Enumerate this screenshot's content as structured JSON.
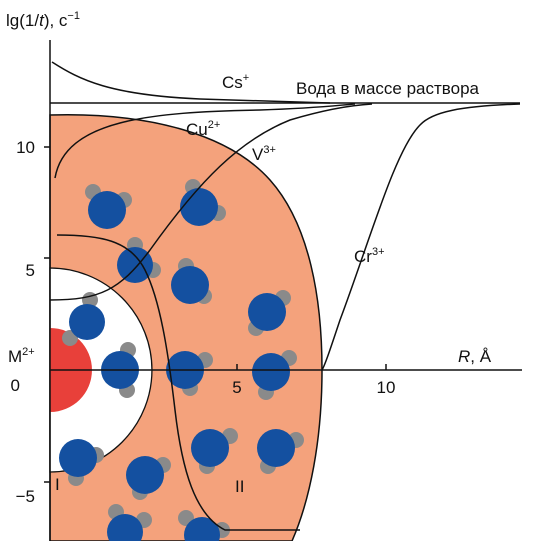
{
  "y_axis": {
    "prefix": "lg(1/",
    "var": "t",
    "suffix": "), c",
    "sup": "−1"
  },
  "x_axis": {
    "var": "R",
    "suffix": ", Å"
  },
  "y_ticks": [
    "10",
    "5",
    "0",
    "−5"
  ],
  "x_ticks": [
    "5",
    "10"
  ],
  "ion": {
    "base": "M",
    "sup": "2+"
  },
  "water_label": "Вода в массе раствора",
  "curves": [
    {
      "base": "Cs",
      "sup": "+"
    },
    {
      "base": "Cu",
      "sup": "2+"
    },
    {
      "base": "V",
      "sup": "3+"
    },
    {
      "base": "Cr",
      "sup": "3+"
    }
  ],
  "regions": [
    "I",
    "II"
  ]
}
